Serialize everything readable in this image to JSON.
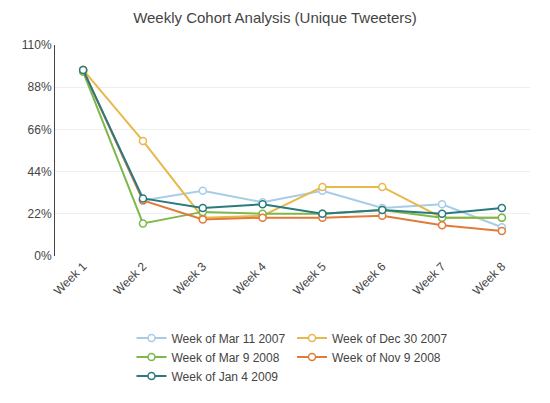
{
  "chart_data": {
    "type": "line",
    "title": "Weekly Cohort Analysis (Unique Tweeters)",
    "categories": [
      "Week 1",
      "Week 2",
      "Week 3",
      "Week 4",
      "Week 5",
      "Week 6",
      "Week 7",
      "Week 8"
    ],
    "series": [
      {
        "name": "Week of Mar 11 2007",
        "color": "#a8cce8",
        "values": [
          0.97,
          0.29,
          0.34,
          0.28,
          0.34,
          0.25,
          0.27,
          0.15
        ]
      },
      {
        "name": "Week of Dec 30 2007",
        "color": "#e8b84b",
        "values": [
          0.97,
          0.6,
          0.2,
          0.21,
          0.36,
          0.36,
          0.2,
          0.2
        ]
      },
      {
        "name": "Week of Mar 9 2008",
        "color": "#7db84a",
        "values": [
          0.96,
          0.17,
          0.23,
          0.22,
          0.22,
          0.24,
          0.2,
          0.2
        ]
      },
      {
        "name": "Week of Nov 9 2008",
        "color": "#e07b3a",
        "values": [
          0.97,
          0.29,
          0.19,
          0.2,
          0.2,
          0.21,
          0.16,
          0.13
        ]
      },
      {
        "name": "Week of Jan 4 2009",
        "color": "#2b7a7e",
        "values": [
          0.97,
          0.3,
          0.25,
          0.27,
          0.22,
          0.24,
          0.22,
          0.25
        ]
      }
    ],
    "ylim": [
      0,
      1.1
    ],
    "yticks": [
      {
        "value": 0,
        "label": "0%"
      },
      {
        "value": 0.22,
        "label": "22%"
      },
      {
        "value": 0.44,
        "label": "44%"
      },
      {
        "value": 0.66,
        "label": "66%"
      },
      {
        "value": 0.88,
        "label": "88%"
      },
      {
        "value": 1.1,
        "label": "110%"
      }
    ],
    "grid": true,
    "legend": "bottom",
    "marker": "circle"
  }
}
